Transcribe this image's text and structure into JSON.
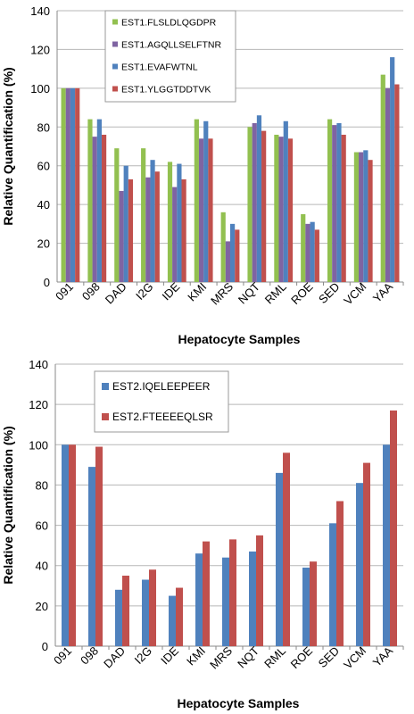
{
  "chart_data": [
    {
      "type": "bar",
      "categories": [
        "091",
        "098",
        "DAD",
        "I2G",
        "IDE",
        "KMI",
        "MRS",
        "NQT",
        "RML",
        "ROE",
        "SED",
        "VCM",
        "YAA"
      ],
      "series": [
        {
          "name": "EST1.FLSLDLQGDPR",
          "color": "#92c050",
          "values": [
            100,
            84,
            69,
            69,
            62,
            84,
            36,
            80,
            76,
            35,
            84,
            67,
            107
          ]
        },
        {
          "name": "EST1.AGQLLSELFTNR",
          "color": "#7f64a2",
          "values": [
            100,
            75,
            47,
            54,
            49,
            74,
            21,
            82,
            75,
            30,
            81,
            67,
            100
          ]
        },
        {
          "name": "EST1.EVAFWTNL",
          "color": "#4f81bd",
          "values": [
            100,
            84,
            60,
            63,
            61,
            83,
            30,
            86,
            83,
            31,
            82,
            68,
            116
          ]
        },
        {
          "name": "EST1.YLGGTDDTVK",
          "color": "#c0504d",
          "values": [
            100,
            76,
            53,
            57,
            53,
            74,
            27,
            78,
            74,
            27,
            76,
            63,
            102
          ]
        }
      ],
      "xlabel": "Hepatocyte Samples",
      "ylabel": "Relative Quantification (%)",
      "ylim": [
        0,
        140
      ],
      "yticks": [
        0,
        20,
        40,
        60,
        80,
        100,
        120,
        140
      ],
      "grid": true,
      "legend_position": "top-left"
    },
    {
      "type": "bar",
      "categories": [
        "091",
        "098",
        "DAD",
        "I2G",
        "IDE",
        "KMI",
        "MRS",
        "NQT",
        "RML",
        "ROE",
        "SED",
        "VCM",
        "YAA"
      ],
      "series": [
        {
          "name": "EST2.IQELEEPEER",
          "color": "#4f81bd",
          "values": [
            100,
            89,
            28,
            33,
            25,
            46,
            44,
            47,
            86,
            39,
            61,
            81,
            100
          ]
        },
        {
          "name": "EST2.FTEEEEQLSR",
          "color": "#c0504d",
          "values": [
            100,
            99,
            35,
            38,
            29,
            52,
            53,
            55,
            96,
            42,
            72,
            91,
            117
          ]
        }
      ],
      "xlabel": "Hepatocyte Samples",
      "ylabel": "Relative Quantification (%)",
      "ylim": [
        0,
        140
      ],
      "yticks": [
        0,
        20,
        40,
        60,
        80,
        100,
        120,
        140
      ],
      "grid": true,
      "legend_position": "top-left"
    }
  ]
}
